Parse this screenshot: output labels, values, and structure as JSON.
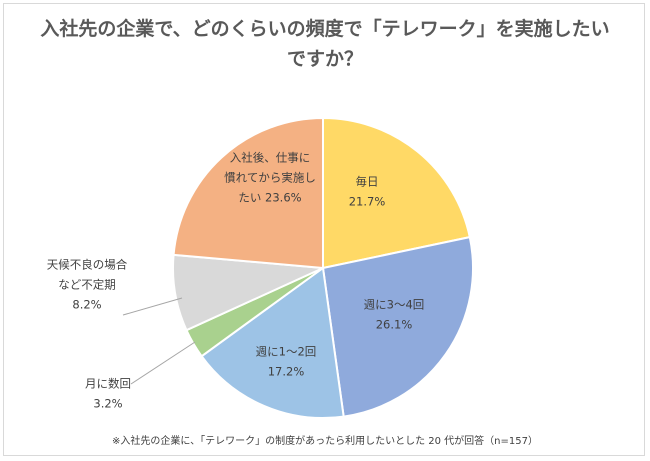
{
  "chart_data": {
    "type": "pie",
    "title_lines": [
      "入社先の企業で、どのくらいの頻度で「テレワーク」を実施したい",
      "ですか？"
    ],
    "slices": [
      {
        "label_lines": [
          "毎日"
        ],
        "percent_text": "21.7%",
        "value": 21.7,
        "color": "#ffd966"
      },
      {
        "label_lines": [
          "週に3～4回"
        ],
        "percent_text": "26.1%",
        "value": 26.1,
        "color": "#8faadc"
      },
      {
        "label_lines": [
          "週に1～2回"
        ],
        "percent_text": "17.2%",
        "value": 17.2,
        "color": "#9dc3e6"
      },
      {
        "label_lines": [
          "月に数回"
        ],
        "percent_text": "3.2%",
        "value": 3.2,
        "color": "#a9d18e"
      },
      {
        "label_lines": [
          "天候不良の場合",
          "など不定期"
        ],
        "percent_text": "8.2%",
        "value": 8.2,
        "color": "#d9d9d9"
      },
      {
        "label_lines": [
          "入社後、仕事に",
          "慣れてから実施し",
          "たい"
        ],
        "percent_text": "23.6%",
        "value": 23.6,
        "color": "#f4b183"
      }
    ],
    "footnote": "※入社先の企業に、「テレワーク」の制度があったら利用したいとした 20 代が回答（n=157）"
  }
}
